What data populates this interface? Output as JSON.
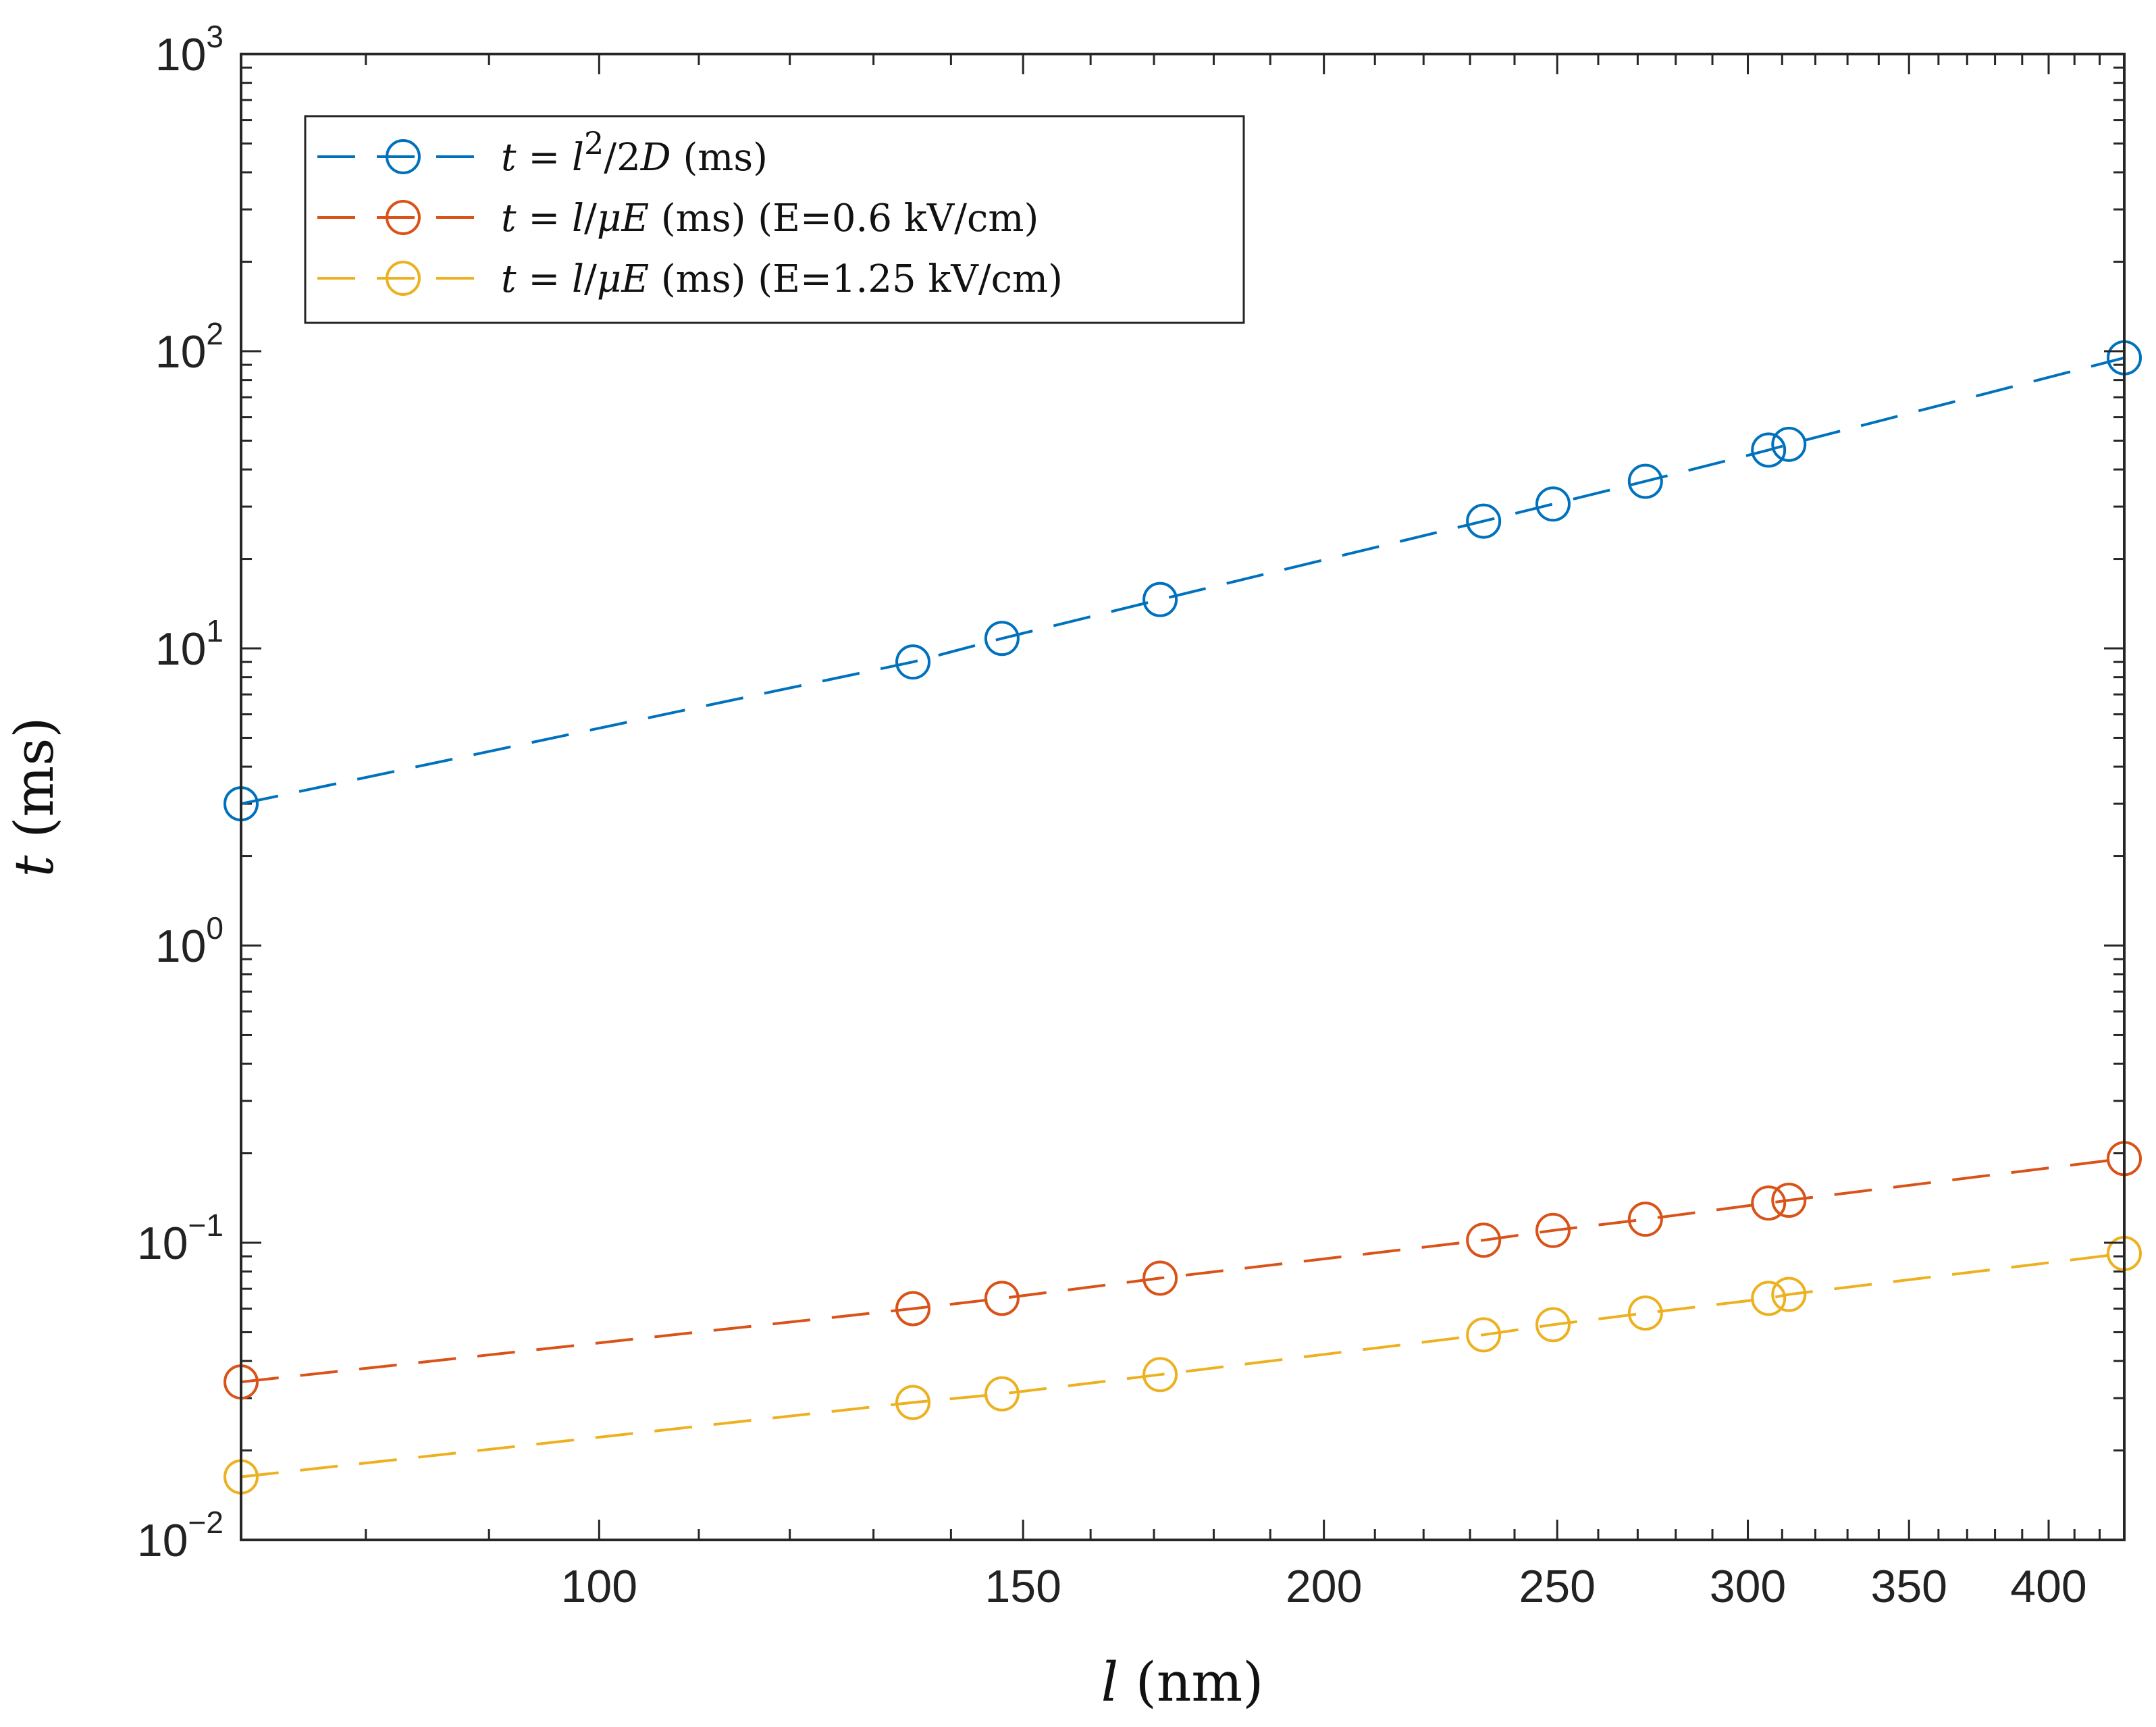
{
  "chart_data": {
    "type": "line",
    "xscale": "log",
    "yscale": "log",
    "xlim": [
      71,
      430
    ],
    "ylim": [
      0.01,
      1000
    ],
    "xlabel": "l (nm)",
    "ylabel": "t (ms)",
    "title": "",
    "grid": false,
    "legend_position": "top-left",
    "x_ticks": [
      {
        "value": 100,
        "label": "100"
      },
      {
        "value": 150,
        "label": "150"
      },
      {
        "value": 200,
        "label": "200"
      },
      {
        "value": 250,
        "label": "250"
      },
      {
        "value": 300,
        "label": "300"
      },
      {
        "value": 350,
        "label": "350"
      },
      {
        "value": 400,
        "label": "400"
      }
    ],
    "y_ticks": [
      {
        "value": 0.01,
        "base": "10",
        "exp": "−2"
      },
      {
        "value": 0.1,
        "base": "10",
        "exp": "−1"
      },
      {
        "value": 1,
        "base": "10",
        "exp": "0"
      },
      {
        "value": 10,
        "base": "10",
        "exp": "1"
      },
      {
        "value": 100,
        "base": "10",
        "exp": "2"
      },
      {
        "value": 1000,
        "base": "10",
        "exp": "3"
      }
    ],
    "x": [
      71,
      135,
      147,
      171,
      233,
      249,
      272,
      306,
      312,
      430
    ],
    "series": [
      {
        "name": "t = l²/2D (ms)",
        "legend": {
          "lhs": "t",
          "eq": " = ",
          "v1": "l",
          "sup": "2",
          "mid": "/2",
          "v2": "D",
          "rest": " (ms)"
        },
        "color": "#0072BD",
        "values": [
          3.0,
          9.0,
          10.8,
          14.6,
          26.8,
          30.6,
          36.5,
          46.5,
          48.6,
          95
        ]
      },
      {
        "name": "t = l/μE (ms) (E=0.6 kV/cm)",
        "legend": {
          "lhs": "t",
          "eq": " = ",
          "v1": "l",
          "mid": "/",
          "v2": "μE",
          "rest": " (ms) (E=0.6 kV/cm)"
        },
        "color": "#D95319",
        "values": [
          0.034,
          0.06,
          0.065,
          0.076,
          0.102,
          0.11,
          0.12,
          0.136,
          0.139,
          0.192
        ]
      },
      {
        "name": "t = l/μE (ms) (E=1.25 kV/cm)",
        "legend": {
          "lhs": "t",
          "eq": " = ",
          "v1": "l",
          "mid": "/",
          "v2": "μE",
          "rest": " (ms) (E=1.25 kV/cm)"
        },
        "color": "#EDB120",
        "values": [
          0.0163,
          0.029,
          0.031,
          0.036,
          0.049,
          0.053,
          0.058,
          0.065,
          0.067,
          0.092
        ]
      }
    ]
  }
}
